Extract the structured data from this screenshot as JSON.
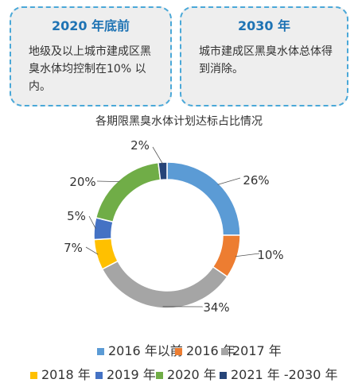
{
  "cards": [
    {
      "title": "2020 年底前",
      "body": "地级及以上城市建成区黑臭水体均控制在10% 以内。"
    },
    {
      "title": "2030 年",
      "body": "城市建成区黑臭水体总体得到消除。"
    }
  ],
  "chart_data": {
    "type": "pie",
    "style": "donut",
    "title": "各期限黑臭水体计划达标占比情况",
    "categories": [
      "2016 年以前",
      "2016 年",
      "2017 年",
      "2018 年",
      "2019 年",
      "2020 年",
      "2021 年 -2030 年"
    ],
    "values": [
      26,
      10,
      34,
      7,
      5,
      20,
      2
    ],
    "labels": [
      "26%",
      "10%",
      "34%",
      "7%",
      "5%",
      "20%",
      "2%"
    ],
    "colors": [
      "#5b9bd5",
      "#ed7d31",
      "#a5a5a5",
      "#ffc000",
      "#4472c4",
      "#70ad47",
      "#264478"
    ],
    "legend_position": "bottom"
  }
}
